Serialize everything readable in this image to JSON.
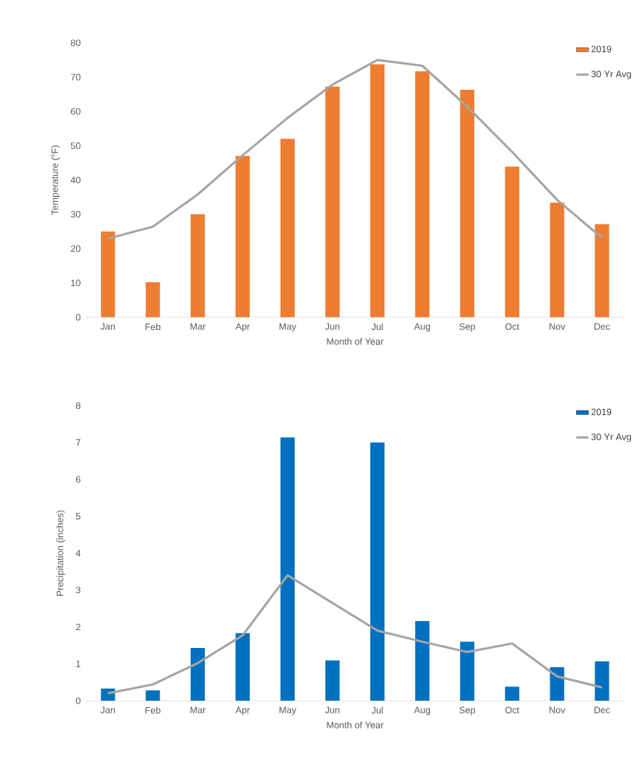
{
  "chart_data": [
    {
      "type": "bar",
      "xlabel": "Month of Year",
      "ylabel": "Temperature (°F)",
      "categories": [
        "Jan",
        "Feb",
        "Mar",
        "Apr",
        "May",
        "Jun",
        "Jul",
        "Aug",
        "Sep",
        "Oct",
        "Nov",
        "Dec"
      ],
      "ylim": [
        0,
        80
      ],
      "yticks": [
        0,
        10,
        20,
        30,
        40,
        50,
        60,
        70,
        80
      ],
      "legend": "top right",
      "series": [
        {
          "name": "2019",
          "color": "#ed7d31",
          "values": [
            25,
            10.2,
            30,
            47,
            52,
            67.2,
            73.7,
            71.7,
            66.3,
            43.9,
            33.4,
            27.1
          ]
        },
        {
          "name": "30 Yr Avg",
          "type": "line",
          "color": "#a5a5a5",
          "values": [
            22.9,
            26.4,
            35.8,
            47.2,
            58.1,
            67.8,
            75,
            73.3,
            61.4,
            48.2,
            34.2,
            23.1
          ]
        }
      ]
    },
    {
      "type": "bar",
      "xlabel": "Month of Year",
      "ylabel": "Precipitation (inches)",
      "categories": [
        "Jan",
        "Feb",
        "Mar",
        "Apr",
        "May",
        "Jun",
        "Jul",
        "Aug",
        "Sep",
        "Oct",
        "Nov",
        "Dec"
      ],
      "ylim": [
        0,
        8
      ],
      "yticks": [
        0,
        1,
        2,
        3,
        4,
        5,
        6,
        7,
        8
      ],
      "legend": "top right",
      "series": [
        {
          "name": "2019",
          "color": "#0070c0",
          "values": [
            0.33,
            0.28,
            1.43,
            1.83,
            7.14,
            1.09,
            7.0,
            2.16,
            1.6,
            0.38,
            0.91,
            1.07
          ]
        },
        {
          "name": "30 Yr Avg",
          "type": "line",
          "color": "#a5a5a5",
          "values": [
            0.2,
            0.44,
            1.02,
            1.77,
            3.4,
            2.65,
            1.9,
            1.6,
            1.32,
            1.55,
            0.66,
            0.36
          ]
        }
      ]
    }
  ]
}
